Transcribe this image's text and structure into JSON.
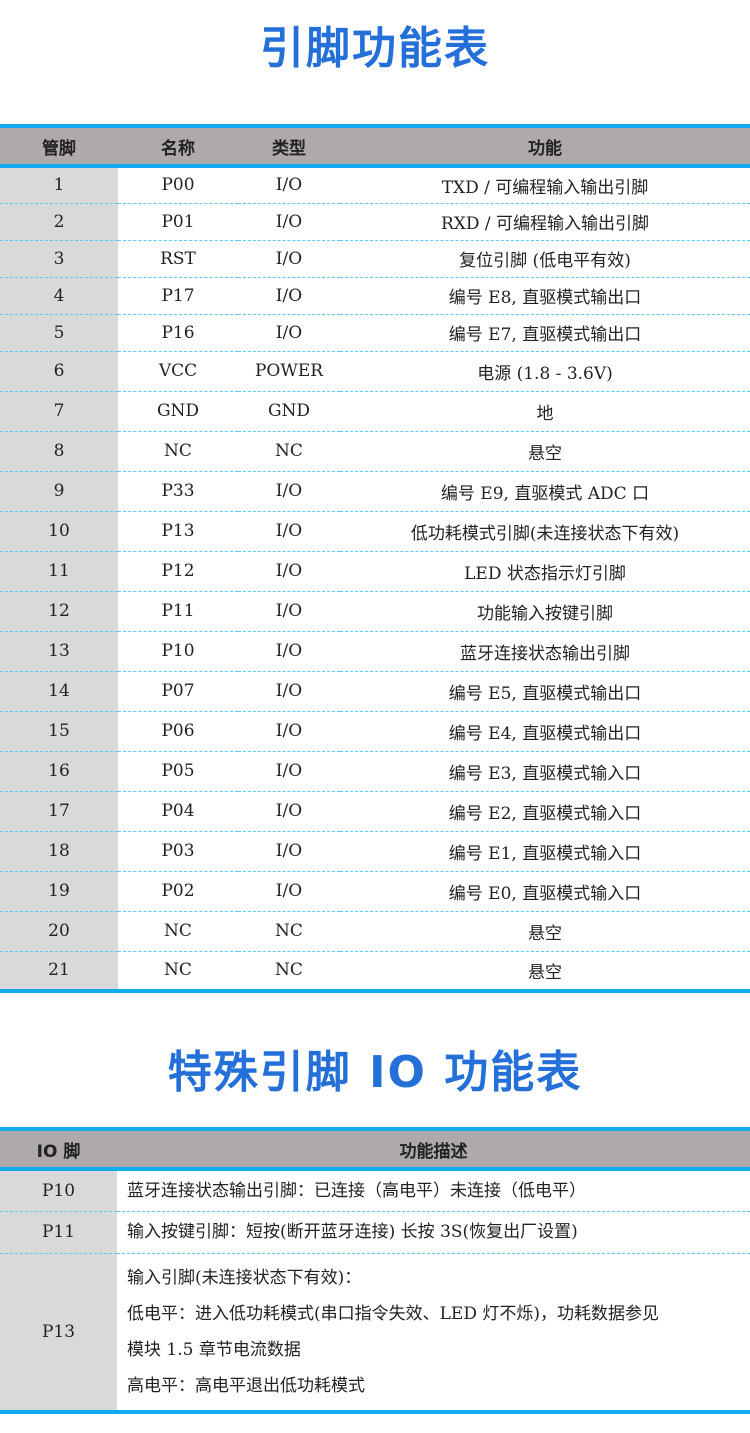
{
  "title1": "引脚功能表",
  "table1": {
    "headers": [
      "管脚",
      "名称",
      "类型",
      "功能"
    ],
    "rows": [
      [
        "1",
        "P00",
        "I/O",
        "TXD / 可编程输入输出引脚"
      ],
      [
        "2",
        "P01",
        "I/O",
        "RXD / 可编程输入输出引脚"
      ],
      [
        "3",
        "RST",
        "I/O",
        "复位引脚 (低电平有效)"
      ],
      [
        "4",
        "P17",
        "I/O",
        "编号 E8, 直驱模式输出口"
      ],
      [
        "5",
        "P16",
        "I/O",
        "编号 E7, 直驱模式输出口"
      ],
      [
        "6",
        "VCC",
        "POWER",
        "电源 (1.8 - 3.6V)"
      ],
      [
        "7",
        "GND",
        "GND",
        "地"
      ],
      [
        "8",
        "NC",
        "NC",
        "悬空"
      ],
      [
        "9",
        "P33",
        "I/O",
        "编号 E9, 直驱模式 ADC 口"
      ],
      [
        "10",
        "P13",
        "I/O",
        "低功耗模式引脚(未连接状态下有效)"
      ],
      [
        "11",
        "P12",
        "I/O",
        "LED 状态指示灯引脚"
      ],
      [
        "12",
        "P11",
        "I/O",
        "功能输入按键引脚"
      ],
      [
        "13",
        "P10",
        "I/O",
        "蓝牙连接状态输出引脚"
      ],
      [
        "14",
        "P07",
        "I/O",
        "编号 E5, 直驱模式输出口"
      ],
      [
        "15",
        "P06",
        "I/O",
        "编号 E4, 直驱模式输出口"
      ],
      [
        "16",
        "P05",
        "I/O",
        "编号 E3, 直驱模式输入口"
      ],
      [
        "17",
        "P04",
        "I/O",
        "编号 E2, 直驱模式输入口"
      ],
      [
        "18",
        "P03",
        "I/O",
        "编号 E1, 直驱模式输入口"
      ],
      [
        "19",
        "P02",
        "I/O",
        "编号 E0, 直驱模式输入口"
      ],
      [
        "20",
        "NC",
        "NC",
        "悬空"
      ],
      [
        "21",
        "NC",
        "NC",
        "悬空"
      ]
    ]
  },
  "title2": "特殊引脚 IO 功能表",
  "table2": {
    "headers": [
      "IO 脚",
      "功能描述"
    ],
    "rows": [
      {
        "pin": "P10",
        "lines": [
          "蓝牙连接状态输出引脚：已连接（高电平）未连接（低电平）"
        ]
      },
      {
        "pin": "P11",
        "lines": [
          "输入按键引脚：短按(断开蓝牙连接) 长按 3S(恢复出厂设置)"
        ]
      },
      {
        "pin": "P13",
        "lines": [
          "输入引脚(未连接状态下有效)：",
          "低电平：进入低功耗模式(串口指令失效、LED 灯不烁)，功耗数据参见",
          "模块 1.5 章节电流数据",
          "高电平：高电平退出低功耗模式"
        ]
      }
    ]
  },
  "colors": {
    "title": "#2470d8",
    "border": "#14aaf0",
    "header_bg": "#aeaaa9",
    "first_col_bg": "#d9d9d9"
  }
}
